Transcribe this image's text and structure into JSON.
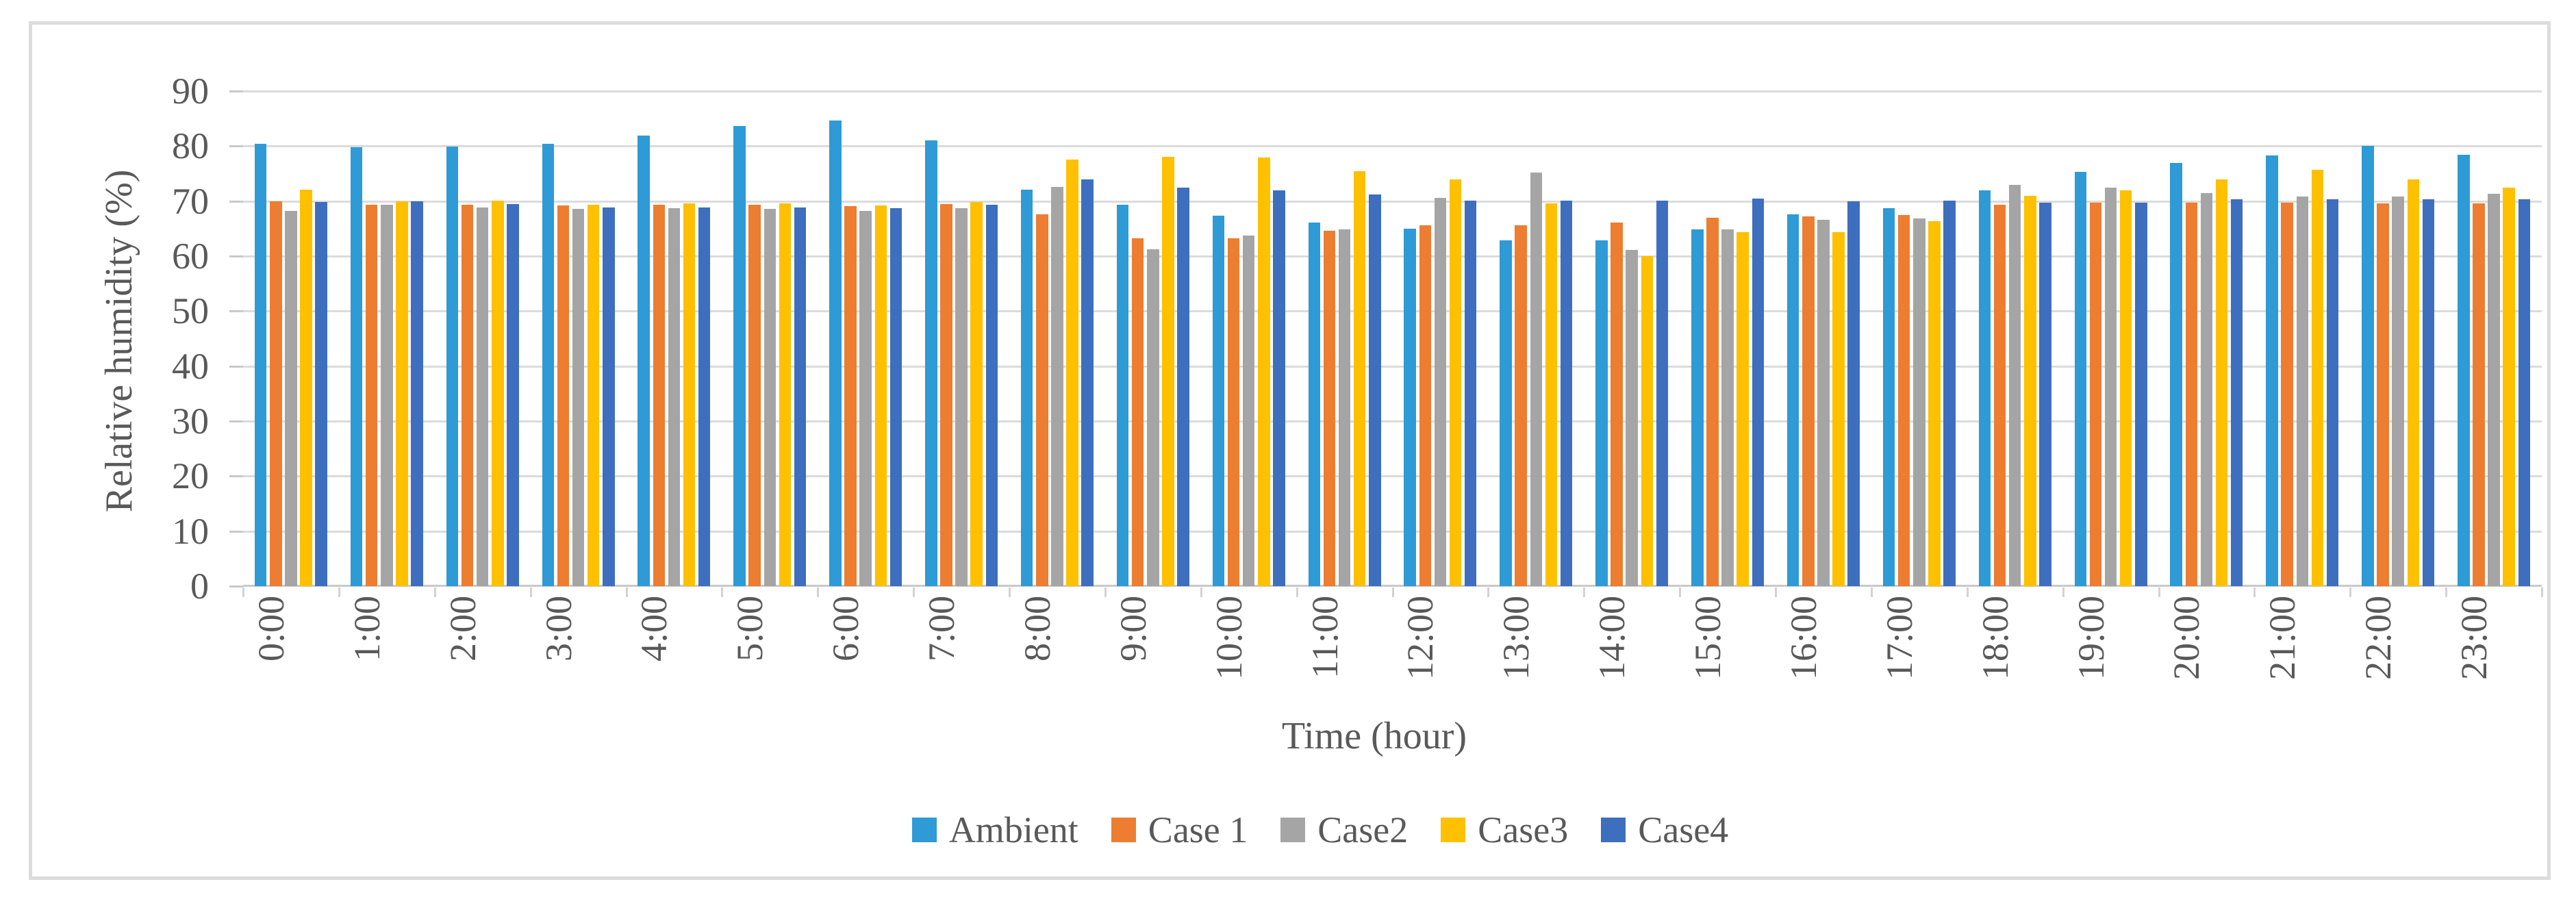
{
  "figure": {
    "border_color": "#DCDCDC",
    "background": "#FFFFFF",
    "text_color": "#595959",
    "gridline_color": "#DBDBDB"
  },
  "chart_data": {
    "type": "bar",
    "title": "",
    "xlabel": "Time (hour)",
    "ylabel": "Relative humidity (%)",
    "ylim": [
      0,
      90
    ],
    "ytick_step": 10,
    "yticks": [
      0,
      10,
      20,
      30,
      40,
      50,
      60,
      70,
      80,
      90
    ],
    "grid": true,
    "legend_position": "bottom",
    "categories": [
      "0:00",
      "1:00",
      "2:00",
      "3:00",
      "4:00",
      "5:00",
      "6:00",
      "7:00",
      "8:00",
      "9:00",
      "10:00",
      "11:00",
      "12:00",
      "13:00",
      "14:00",
      "15:00",
      "16:00",
      "17:00",
      "18:00",
      "19:00",
      "20:00",
      "21:00",
      "22:00",
      "23:00"
    ],
    "series": [
      {
        "name": "Ambient",
        "color": "#2E9AD6",
        "values": [
          80.4,
          79.8,
          79.9,
          80.4,
          81.9,
          83.6,
          84.7,
          81.1,
          72.1,
          69.4,
          67.3,
          66.1,
          65.0,
          62.9,
          62.9,
          64.9,
          67.6,
          68.7,
          72.0,
          75.3,
          76.9,
          78.3,
          80.1,
          78.4
        ]
      },
      {
        "name": "Case 1",
        "color": "#ED7D31",
        "values": [
          69.9,
          69.4,
          69.3,
          69.2,
          69.4,
          69.4,
          69.1,
          69.5,
          67.6,
          63.2,
          63.3,
          64.6,
          65.6,
          65.6,
          66.1,
          67.0,
          67.2,
          67.5,
          69.3,
          69.7,
          69.7,
          69.7,
          69.6,
          69.6
        ]
      },
      {
        "name": "Case2",
        "color": "#A5A5A5",
        "values": [
          68.2,
          69.3,
          68.9,
          68.6,
          68.7,
          68.6,
          68.2,
          68.7,
          72.6,
          61.2,
          63.7,
          64.9,
          70.6,
          75.2,
          61.1,
          64.9,
          66.6,
          66.9,
          73.0,
          72.5,
          71.4,
          70.8,
          70.8,
          71.3
        ]
      },
      {
        "name": "Case3",
        "color": "#FFC000",
        "values": [
          72.1,
          69.9,
          70.1,
          69.3,
          69.6,
          69.6,
          69.2,
          69.8,
          77.6,
          78.1,
          77.9,
          75.4,
          74.0,
          69.6,
          60.0,
          64.4,
          64.3,
          66.4,
          70.9,
          72.0,
          73.9,
          75.7,
          74.0,
          72.4
        ]
      },
      {
        "name": "Case4",
        "color": "#3E6EBE",
        "values": [
          69.8,
          69.9,
          69.5,
          68.9,
          68.9,
          68.8,
          68.7,
          69.3,
          73.9,
          72.5,
          72.0,
          71.2,
          70.1,
          70.1,
          70.1,
          70.5,
          70.0,
          70.1,
          69.7,
          69.7,
          70.3,
          70.3,
          70.3,
          70.3
        ]
      }
    ]
  }
}
